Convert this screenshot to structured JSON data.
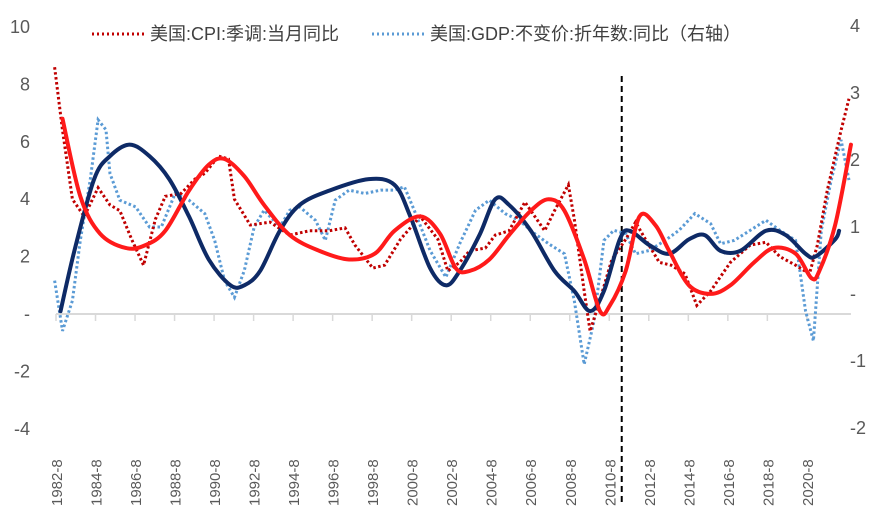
{
  "chart_data": {
    "type": "line",
    "title": "",
    "legend": {
      "placement": "top",
      "entries": [
        "美国:CPI:季调:当月同比",
        "美国:GDP:不变价:折年数:同比（右轴）"
      ]
    },
    "x_tick_labels": [
      "1982-8",
      "1984-8",
      "1986-8",
      "1988-8",
      "1990-8",
      "1992-8",
      "1994-8",
      "1996-8",
      "1998-8",
      "2000-8",
      "2002-8",
      "2004-8",
      "2006-8",
      "2008-8",
      "2010-8",
      "2012-8",
      "2014-8",
      "2016-8",
      "2018-8",
      "2020-8"
    ],
    "xlim": [
      1982.67,
      2023.0
    ],
    "left_axis": {
      "ylim": [
        -4,
        10
      ],
      "tick_labels": [
        "10",
        "8",
        "6",
        "4",
        "2",
        "-",
        "-2",
        "-4"
      ],
      "tick_values": [
        10,
        8,
        6,
        4,
        2,
        0,
        -2,
        -4
      ]
    },
    "right_axis": {
      "ylim": [
        -2,
        4
      ],
      "tick_labels": [
        "4",
        "3",
        "2",
        "1",
        "-",
        "-1",
        "-2"
      ],
      "tick_values": [
        4,
        3,
        2,
        1,
        0,
        -1,
        -2
      ]
    },
    "vertical_marker_year": 2011.3,
    "colors": {
      "cpi": "#c00000",
      "gdp": "#5b9bd5",
      "cpi_smooth": "#ff1a1a",
      "gdp_smooth": "#0e2a66"
    },
    "series": [
      {
        "name": "美国:CPI:季调:当月同比",
        "axis": "left",
        "style": "dotted",
        "color_key": "cpi",
        "points": [
          [
            1982.6,
            8.6
          ],
          [
            1983.0,
            6.4
          ],
          [
            1983.5,
            4.0
          ],
          [
            1984.1,
            3.4
          ],
          [
            1984.8,
            4.4
          ],
          [
            1985.4,
            3.8
          ],
          [
            1985.9,
            3.6
          ],
          [
            1986.5,
            2.6
          ],
          [
            1987.1,
            1.7
          ],
          [
            1987.7,
            3.3
          ],
          [
            1988.2,
            4.1
          ],
          [
            1989.0,
            4.2
          ],
          [
            1989.7,
            4.7
          ],
          [
            1990.2,
            4.9
          ],
          [
            1990.9,
            5.5
          ],
          [
            1991.4,
            5.4
          ],
          [
            1991.7,
            4.0
          ],
          [
            1992.5,
            3.1
          ],
          [
            1993.5,
            3.2
          ],
          [
            1994.5,
            2.75
          ],
          [
            1995.5,
            2.9
          ],
          [
            1996.5,
            2.9
          ],
          [
            1997.3,
            3.0
          ],
          [
            1997.8,
            2.4
          ],
          [
            1998.7,
            1.6
          ],
          [
            1999.3,
            1.7
          ],
          [
            2000.1,
            2.6
          ],
          [
            2001.1,
            3.4
          ],
          [
            2002.0,
            2.6
          ],
          [
            2002.5,
            1.5
          ],
          [
            2003.1,
            1.8
          ],
          [
            2003.6,
            2.2
          ],
          [
            2004.4,
            2.3
          ],
          [
            2004.9,
            2.75
          ],
          [
            2005.6,
            2.9
          ],
          [
            2006.4,
            3.9
          ],
          [
            2007.4,
            2.9
          ],
          [
            2007.9,
            3.6
          ],
          [
            2008.6,
            4.5
          ],
          [
            2008.9,
            3.3
          ],
          [
            2009.4,
            0.8
          ],
          [
            2009.7,
            -0.6
          ],
          [
            2010.2,
            0.5
          ],
          [
            2010.8,
            1.9
          ],
          [
            2011.5,
            2.6
          ],
          [
            2012.0,
            3.2
          ],
          [
            2012.5,
            2.6
          ],
          [
            2013.2,
            1.8
          ],
          [
            2013.8,
            1.7
          ],
          [
            2014.5,
            1.4
          ],
          [
            2015.1,
            0.3
          ],
          [
            2015.8,
            0.8
          ],
          [
            2016.8,
            1.8
          ],
          [
            2017.8,
            2.4
          ],
          [
            2018.6,
            2.5
          ],
          [
            2019.3,
            2.0
          ],
          [
            2020.1,
            1.7
          ],
          [
            2020.8,
            1.4
          ],
          [
            2021.2,
            2.4
          ],
          [
            2021.7,
            4.3
          ],
          [
            2022.4,
            6.4
          ],
          [
            2022.8,
            7.5
          ]
        ]
      },
      {
        "name": "美国:GDP:不变价:折年数:同比（右轴）",
        "axis": "right",
        "style": "dotted",
        "color_key": "gdp",
        "points": [
          [
            1982.6,
            0.2
          ],
          [
            1983.0,
            -0.55
          ],
          [
            1983.5,
            -0.1
          ],
          [
            1983.9,
            0.8
          ],
          [
            1984.4,
            1.7
          ],
          [
            1984.8,
            2.6
          ],
          [
            1985.2,
            2.45
          ],
          [
            1985.4,
            1.8
          ],
          [
            1985.9,
            1.4
          ],
          [
            1986.7,
            1.3
          ],
          [
            1987.4,
            1.0
          ],
          [
            1988.0,
            1.0
          ],
          [
            1988.7,
            1.5
          ],
          [
            1989.4,
            1.4
          ],
          [
            1990.2,
            1.2
          ],
          [
            1990.7,
            0.8
          ],
          [
            1991.2,
            0.2
          ],
          [
            1991.7,
            -0.05
          ],
          [
            1992.2,
            0.35
          ],
          [
            1992.7,
            1.0
          ],
          [
            1993.2,
            1.25
          ],
          [
            1994.0,
            1.0
          ],
          [
            1994.5,
            1.25
          ],
          [
            1995.0,
            1.3
          ],
          [
            1995.8,
            1.1
          ],
          [
            1996.3,
            0.8
          ],
          [
            1996.8,
            1.4
          ],
          [
            1997.5,
            1.55
          ],
          [
            1998.3,
            1.5
          ],
          [
            1999.1,
            1.55
          ],
          [
            1999.8,
            1.55
          ],
          [
            2000.3,
            1.6
          ],
          [
            2000.8,
            1.25
          ],
          [
            2001.6,
            0.65
          ],
          [
            2002.4,
            0.25
          ],
          [
            2003.1,
            0.75
          ],
          [
            2003.9,
            1.25
          ],
          [
            2004.6,
            1.4
          ],
          [
            2005.4,
            1.2
          ],
          [
            2006.1,
            1.1
          ],
          [
            2006.9,
            0.9
          ],
          [
            2007.6,
            0.75
          ],
          [
            2008.4,
            0.6
          ],
          [
            2008.9,
            -0.1
          ],
          [
            2009.4,
            -1.05
          ],
          [
            2009.9,
            -0.4
          ],
          [
            2010.4,
            0.8
          ],
          [
            2010.9,
            0.95
          ],
          [
            2011.5,
            0.9
          ],
          [
            2012.0,
            0.6
          ],
          [
            2012.7,
            0.65
          ],
          [
            2013.5,
            0.8
          ],
          [
            2014.2,
            0.95
          ],
          [
            2015.0,
            1.2
          ],
          [
            2015.8,
            1.05
          ],
          [
            2016.3,
            0.75
          ],
          [
            2017.0,
            0.8
          ],
          [
            2017.8,
            0.95
          ],
          [
            2018.6,
            1.1
          ],
          [
            2019.3,
            0.95
          ],
          [
            2020.1,
            0.8
          ],
          [
            2020.6,
            -0.25
          ],
          [
            2021.0,
            -0.7
          ],
          [
            2021.4,
            0.95
          ],
          [
            2021.9,
            1.7
          ],
          [
            2022.4,
            2.3
          ],
          [
            2022.8,
            1.7
          ]
        ]
      },
      {
        "name": "CPI smoothed",
        "axis": "left",
        "style": "solid",
        "color_key": "cpi_smooth",
        "in_legend": false,
        "points": [
          [
            1983.0,
            6.8
          ],
          [
            1983.9,
            4.1
          ],
          [
            1984.9,
            2.8
          ],
          [
            1986.2,
            2.3
          ],
          [
            1987.2,
            2.4
          ],
          [
            1988.2,
            2.9
          ],
          [
            1989.4,
            4.3
          ],
          [
            1990.4,
            5.2
          ],
          [
            1991.2,
            5.4
          ],
          [
            1992.2,
            4.8
          ],
          [
            1993.2,
            3.8
          ],
          [
            1994.5,
            2.75
          ],
          [
            1996.0,
            2.2
          ],
          [
            1997.5,
            1.9
          ],
          [
            1998.8,
            2.1
          ],
          [
            1999.8,
            2.9
          ],
          [
            2001.1,
            3.4
          ],
          [
            2002.1,
            2.8
          ],
          [
            2002.9,
            1.6
          ],
          [
            2003.6,
            1.5
          ],
          [
            2004.6,
            1.9
          ],
          [
            2005.6,
            2.75
          ],
          [
            2006.7,
            3.6
          ],
          [
            2007.6,
            4.0
          ],
          [
            2008.4,
            3.6
          ],
          [
            2009.4,
            1.9
          ],
          [
            2010.2,
            0.1
          ],
          [
            2010.7,
            0.3
          ],
          [
            2011.5,
            1.5
          ],
          [
            2012.2,
            3.4
          ],
          [
            2013.0,
            3.1
          ],
          [
            2013.7,
            2.2
          ],
          [
            2014.7,
            1.0
          ],
          [
            2015.8,
            0.7
          ],
          [
            2016.8,
            1.0
          ],
          [
            2018.0,
            1.8
          ],
          [
            2019.0,
            2.3
          ],
          [
            2020.1,
            2.1
          ],
          [
            2020.9,
            1.25
          ],
          [
            2021.3,
            1.5
          ],
          [
            2022.1,
            3.1
          ],
          [
            2022.9,
            5.9
          ]
        ]
      },
      {
        "name": "GDP smoothed",
        "axis": "left",
        "style": "solid",
        "color_key": "gdp_smooth",
        "in_legend": false,
        "points": [
          [
            1982.9,
            0.1
          ],
          [
            1983.6,
            2.2
          ],
          [
            1984.6,
            4.7
          ],
          [
            1985.4,
            5.5
          ],
          [
            1986.4,
            5.9
          ],
          [
            1987.4,
            5.5
          ],
          [
            1988.4,
            4.7
          ],
          [
            1989.4,
            3.4
          ],
          [
            1990.4,
            1.9
          ],
          [
            1991.5,
            1.0
          ],
          [
            1992.2,
            1.0
          ],
          [
            1993.0,
            1.5
          ],
          [
            1994.0,
            2.9
          ],
          [
            1995.0,
            3.8
          ],
          [
            1996.5,
            4.3
          ],
          [
            1998.5,
            4.7
          ],
          [
            1999.8,
            4.5
          ],
          [
            2000.6,
            3.4
          ],
          [
            2001.6,
            1.6
          ],
          [
            2002.4,
            1.0
          ],
          [
            2003.1,
            1.5
          ],
          [
            2004.1,
            2.75
          ],
          [
            2004.9,
            4.0
          ],
          [
            2005.6,
            3.8
          ],
          [
            2006.7,
            2.9
          ],
          [
            2007.9,
            1.5
          ],
          [
            2008.9,
            0.8
          ],
          [
            2009.7,
            0.1
          ],
          [
            2010.4,
            0.8
          ],
          [
            2011.2,
            2.6
          ],
          [
            2011.7,
            2.9
          ],
          [
            2012.7,
            2.4
          ],
          [
            2013.7,
            2.1
          ],
          [
            2014.7,
            2.6
          ],
          [
            2015.5,
            2.75
          ],
          [
            2016.3,
            2.2
          ],
          [
            2017.3,
            2.2
          ],
          [
            2018.6,
            2.9
          ],
          [
            2019.6,
            2.75
          ],
          [
            2020.6,
            2.1
          ],
          [
            2021.1,
            2.0
          ],
          [
            2022.1,
            2.6
          ],
          [
            2022.3,
            2.9
          ]
        ]
      }
    ]
  }
}
